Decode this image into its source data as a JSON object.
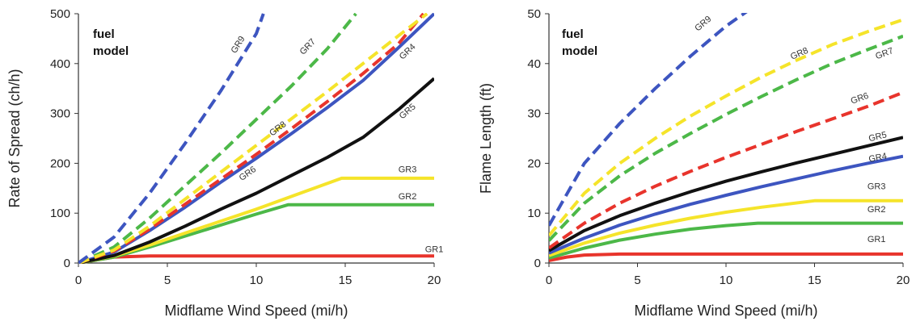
{
  "chart_data": [
    {
      "type": "line",
      "xlabel": "Midflame Wind Speed (mi/h)",
      "ylabel": "Rate of Spread (ch/h)",
      "xlim": [
        0,
        20
      ],
      "ylim": [
        0,
        500
      ],
      "xticks": [
        "0",
        "5",
        "10",
        "15",
        "20"
      ],
      "yticks": [
        "0",
        "100",
        "200",
        "300",
        "400",
        "500"
      ],
      "annotation": [
        "fuel",
        "model"
      ],
      "grid": false,
      "series": [
        {
          "name": "GR1",
          "color": "#e8342c",
          "dash": false,
          "x": [
            0,
            1,
            2,
            4,
            20
          ],
          "y": [
            0,
            6,
            12,
            14,
            14
          ],
          "label_at": [
            20,
            22
          ]
        },
        {
          "name": "GR2",
          "color": "#4cb848",
          "dash": false,
          "x": [
            0,
            2,
            4,
            6,
            8,
            10,
            11.8,
            20
          ],
          "y": [
            0,
            12,
            32,
            54,
            76,
            98,
            117,
            117
          ],
          "label_at": [
            18.5,
            128
          ]
        },
        {
          "name": "GR3",
          "color": "#f5e42a",
          "dash": false,
          "x": [
            0,
            2,
            4,
            6,
            8,
            10,
            12,
            14.8,
            20
          ],
          "y": [
            0,
            14,
            36,
            60,
            84,
            108,
            134,
            170,
            170
          ],
          "label_at": [
            18.5,
            182
          ]
        },
        {
          "name": "GR4",
          "color": "#3d55c0",
          "dash": false,
          "x": [
            0,
            2,
            4,
            6,
            8,
            10,
            12,
            14,
            16,
            18,
            20
          ],
          "y": [
            0,
            22,
            65,
            112,
            162,
            210,
            260,
            312,
            366,
            432,
            500
          ],
          "label_at": [
            18.6,
            420
          ]
        },
        {
          "name": "GR5",
          "color": "#111111",
          "dash": false,
          "x": [
            0,
            2,
            4,
            6,
            8,
            10,
            12,
            14,
            16,
            18,
            20
          ],
          "y": [
            0,
            15,
            42,
            74,
            108,
            140,
            176,
            212,
            252,
            308,
            370
          ],
          "label_at": [
            18.6,
            300
          ]
        },
        {
          "name": "GR6",
          "color": "#e8342c",
          "dash": true,
          "x": [
            0,
            2,
            4,
            6,
            8,
            10,
            12,
            14,
            16,
            18,
            19.4
          ],
          "y": [
            0,
            24,
            68,
            118,
            168,
            218,
            270,
            324,
            380,
            440,
            500
          ],
          "label_at": [
            9.6,
            175
          ]
        },
        {
          "name": "GR7",
          "color": "#4cb848",
          "dash": true,
          "x": [
            0,
            2,
            4,
            6,
            8,
            10,
            12,
            14,
            15.6
          ],
          "y": [
            0,
            32,
            90,
            155,
            220,
            288,
            356,
            430,
            500
          ],
          "label_at": [
            13,
            430
          ]
        },
        {
          "name": "GR8",
          "color": "#f5e42a",
          "dash": true,
          "x": [
            0,
            2,
            4,
            6,
            8,
            10,
            12,
            14,
            16,
            18,
            19.6
          ],
          "y": [
            0,
            26,
            74,
            128,
            182,
            236,
            290,
            344,
            400,
            456,
            500
          ],
          "label_at": [
            11.3,
            265
          ]
        },
        {
          "name": "GR9",
          "color": "#3d55c0",
          "dash": true,
          "x": [
            0,
            2,
            4,
            6,
            8,
            10,
            10.4
          ],
          "y": [
            0,
            52,
            140,
            240,
            345,
            460,
            500
          ],
          "label_at": [
            9.1,
            435
          ]
        }
      ]
    },
    {
      "type": "line",
      "xlabel": "Midflame Wind Speed (mi/h)",
      "ylabel": "Flame Length (ft)",
      "xlim": [
        0,
        20
      ],
      "ylim": [
        0,
        50
      ],
      "xticks": [
        "0",
        "5",
        "10",
        "15",
        "20"
      ],
      "yticks": [
        "0",
        "10",
        "20",
        "30",
        "40",
        "50"
      ],
      "annotation": [
        "fuel",
        "model"
      ],
      "grid": false,
      "series": [
        {
          "name": "GR1",
          "color": "#e8342c",
          "dash": false,
          "x": [
            0,
            1,
            2,
            4,
            20
          ],
          "y": [
            0.5,
            1.2,
            1.6,
            1.8,
            1.8
          ],
          "label_at": [
            18.5,
            4.2
          ]
        },
        {
          "name": "GR2",
          "color": "#4cb848",
          "dash": false,
          "x": [
            0,
            2,
            4,
            6,
            8,
            10,
            11.8,
            20
          ],
          "y": [
            1,
            3,
            4.6,
            5.8,
            6.8,
            7.5,
            8,
            8
          ],
          "label_at": [
            18.5,
            10.2
          ]
        },
        {
          "name": "GR3",
          "color": "#f5e42a",
          "dash": false,
          "x": [
            0,
            2,
            4,
            6,
            8,
            10,
            12,
            15,
            20
          ],
          "y": [
            1.5,
            4,
            6,
            7.6,
            9,
            10.2,
            11.2,
            12.5,
            12.5
          ],
          "label_at": [
            18.5,
            14.8
          ]
        },
        {
          "name": "GR4",
          "color": "#3d55c0",
          "dash": false,
          "x": [
            0,
            2,
            4,
            6,
            8,
            10,
            12,
            14,
            16,
            18,
            20
          ],
          "y": [
            2,
            5,
            7.6,
            9.8,
            11.8,
            13.6,
            15.3,
            16.9,
            18.5,
            20,
            21.4
          ],
          "label_at": [
            18.6,
            20.6
          ]
        },
        {
          "name": "GR5",
          "color": "#111111",
          "dash": false,
          "x": [
            0,
            2,
            4,
            6,
            8,
            10,
            12,
            14,
            16,
            18,
            20
          ],
          "y": [
            2.5,
            6.5,
            9.5,
            12,
            14.3,
            16.4,
            18.3,
            20.1,
            21.8,
            23.5,
            25.2
          ],
          "label_at": [
            18.6,
            24.8
          ]
        },
        {
          "name": "GR6",
          "color": "#e8342c",
          "dash": true,
          "x": [
            0,
            2,
            4,
            6,
            8,
            10,
            12,
            14,
            16,
            18,
            20
          ],
          "y": [
            3,
            8,
            12,
            15.4,
            18.4,
            21.2,
            23.8,
            26.4,
            28.9,
            31.4,
            34.2
          ],
          "label_at": [
            17.6,
            32.5
          ]
        },
        {
          "name": "GR7",
          "color": "#4cb848",
          "dash": true,
          "x": [
            0,
            2,
            4,
            6,
            8,
            10,
            12,
            14,
            16,
            18,
            20
          ],
          "y": [
            4.5,
            12,
            17.5,
            22,
            26,
            29.8,
            33.4,
            36.8,
            40,
            42.8,
            45.5
          ],
          "label_at": [
            19,
            41.5
          ]
        },
        {
          "name": "GR8",
          "color": "#f5e42a",
          "dash": true,
          "x": [
            0,
            2,
            4,
            6,
            8,
            10,
            12,
            14,
            16,
            18,
            20
          ],
          "y": [
            5.5,
            14,
            20,
            25,
            29.5,
            33.5,
            37.3,
            40.7,
            43.8,
            46.4,
            48.8
          ],
          "label_at": [
            14.2,
            41.5
          ]
        },
        {
          "name": "GR9",
          "color": "#3d55c0",
          "dash": true,
          "x": [
            0,
            2,
            4,
            6,
            8,
            10,
            11.4
          ],
          "y": [
            7.5,
            20,
            28,
            35,
            41.5,
            47.5,
            51
          ],
          "label_at": [
            8.8,
            47.6
          ]
        }
      ]
    }
  ]
}
